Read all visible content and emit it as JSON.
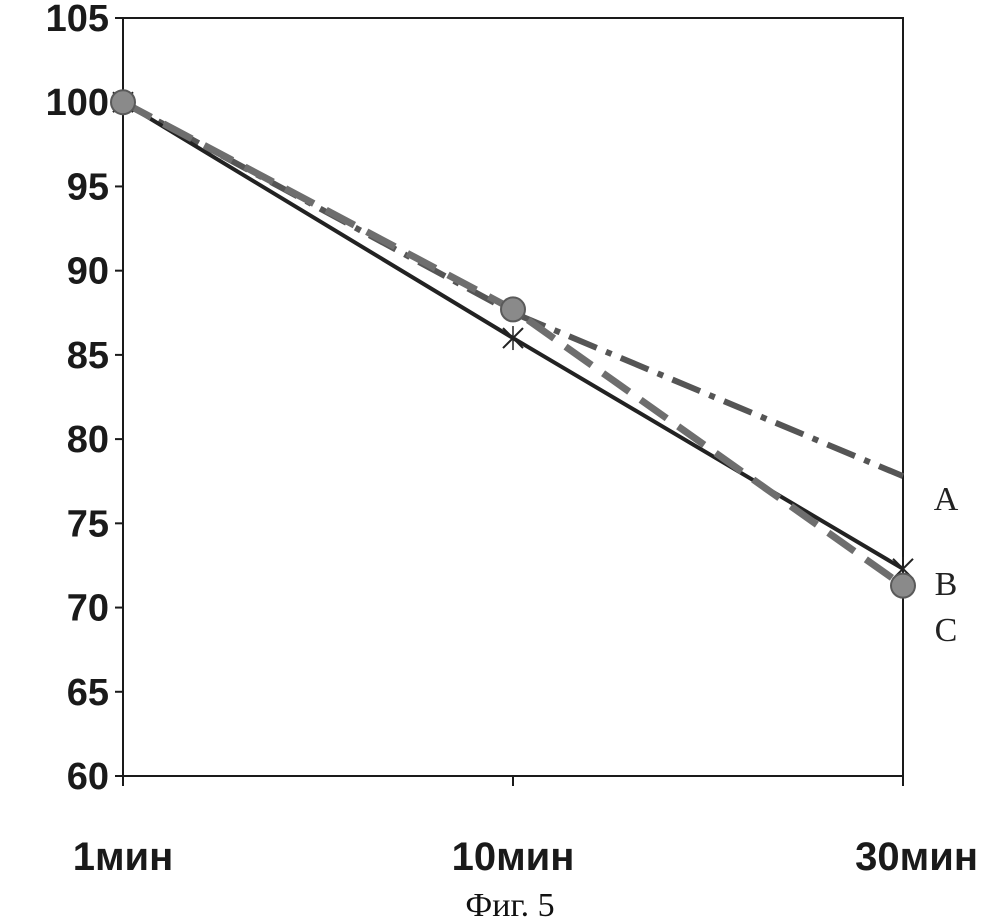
{
  "caption": "Фиг. 5",
  "chart_data": {
    "type": "line",
    "categories": [
      "1мин",
      "10мин",
      "30мин"
    ],
    "ylim": [
      60,
      105
    ],
    "yticks": [
      60,
      65,
      70,
      75,
      80,
      85,
      90,
      95,
      100,
      105
    ],
    "grid": false,
    "legend": "right-end labels",
    "series": [
      {
        "name": "A",
        "values": [
          100,
          87.5,
          77.8
        ],
        "style": "dash-dot",
        "color": "#555555",
        "marker": "none"
      },
      {
        "name": "B",
        "values": [
          100,
          86.0,
          72.3
        ],
        "style": "solid",
        "color": "#222222",
        "marker": "x"
      },
      {
        "name": "C",
        "values": [
          100,
          87.7,
          71.3
        ],
        "style": "long-dash",
        "color": "#6e6e6e",
        "marker": "circle"
      }
    ]
  }
}
